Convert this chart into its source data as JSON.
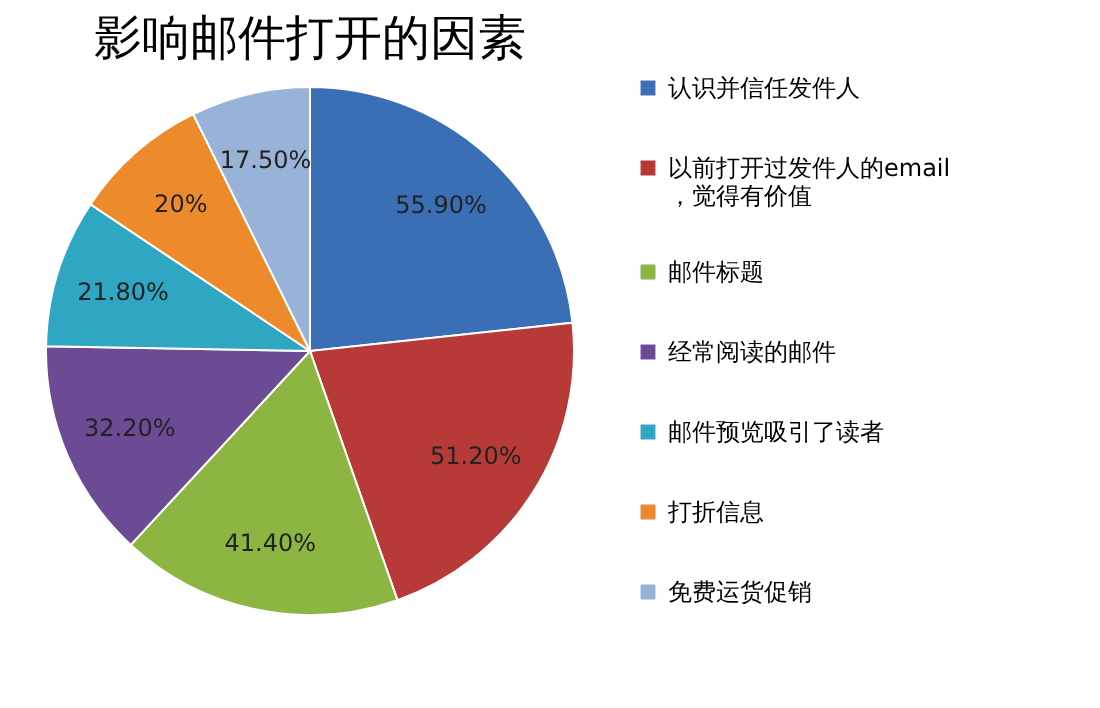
{
  "chart_data": {
    "type": "pie",
    "title": "影响邮件打开的因素",
    "categories": [
      "认识并信任发件人",
      "以前打开过发件人的email，觉得有价值",
      "邮件标题",
      "经常阅读的邮件",
      "邮件预览吸引了读者",
      "打折信息",
      "免费运货促销"
    ],
    "values": [
      55.9,
      51.2,
      41.4,
      32.2,
      21.8,
      20,
      17.5
    ],
    "value_labels": [
      "55.90%",
      "51.20%",
      "41.40%",
      "32.20%",
      "21.80%",
      "20%",
      "17.50%"
    ],
    "colors": [
      "#3a6fb5",
      "#b83a38",
      "#8db542",
      "#6b4c94",
      "#2fa6c2",
      "#ec8a2c",
      "#98b2d8"
    ],
    "legend": "right"
  }
}
